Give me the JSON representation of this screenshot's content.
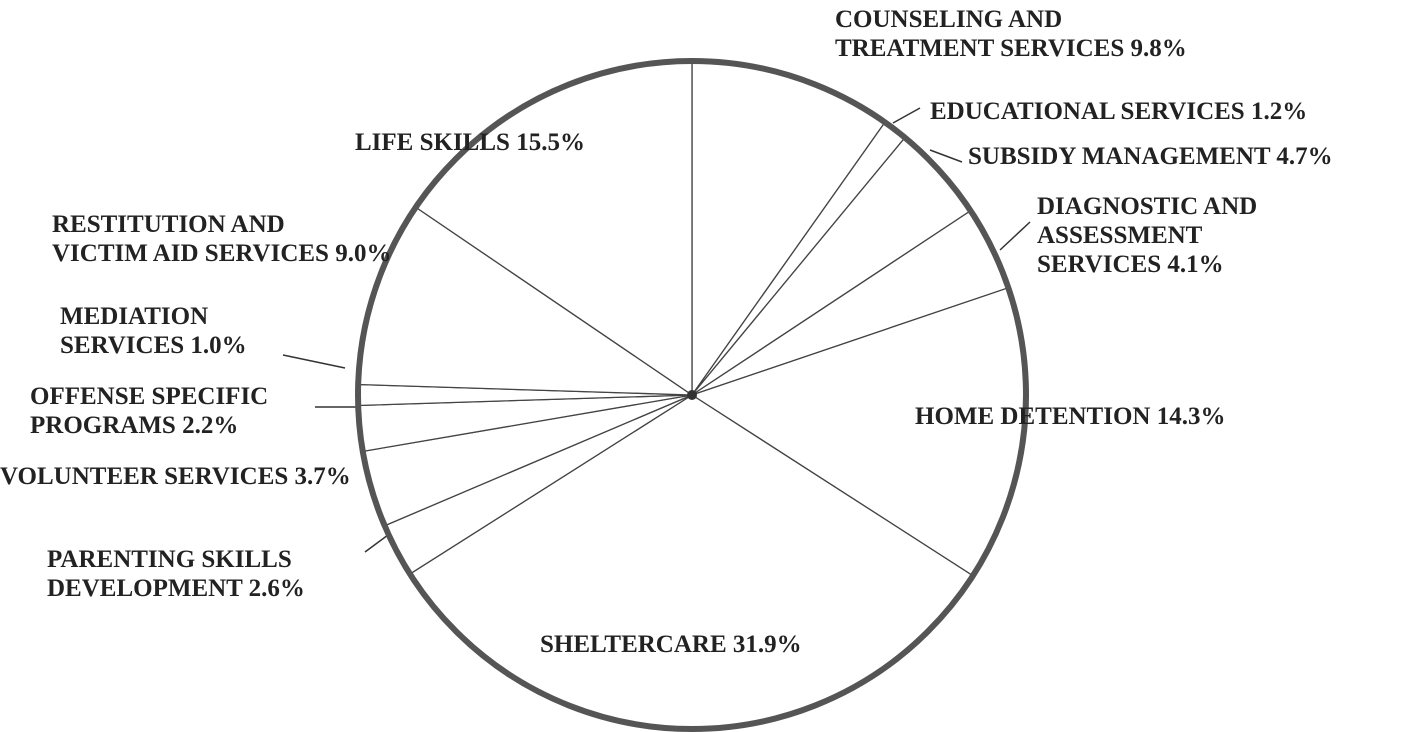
{
  "chart_data": {
    "type": "pie",
    "categories": [
      "COUNSELING AND\nTREATMENT SERVICES",
      "EDUCATIONAL SERVICES",
      "SUBSIDY MANAGEMENT",
      "DIAGNOSTIC AND\nASSESSMENT\nSERVICES",
      "HOME DETENTION",
      "SHELTERCARE",
      "PARENTING SKILLS\nDEVELOPMENT",
      "VOLUNTEER SERVICES",
      "OFFENSE SPECIFIC\nPROGRAMS",
      "MEDIATION\nSERVICES",
      "RESTITUTION AND\nVICTIM AID SERVICES",
      "LIFE SKILLS"
    ],
    "values": [
      9.8,
      1.2,
      4.7,
      4.1,
      14.3,
      31.9,
      2.6,
      3.7,
      2.2,
      1.0,
      9.0,
      15.5
    ],
    "value_labels": [
      "9.8%",
      "1.2%",
      "4.7%",
      "4.1%",
      "14.3%",
      "31.9%",
      "2.6%",
      "3.7%",
      "2.2%",
      "1.0%",
      "9.0%",
      "15.5%"
    ],
    "color": "#ffffff"
  }
}
